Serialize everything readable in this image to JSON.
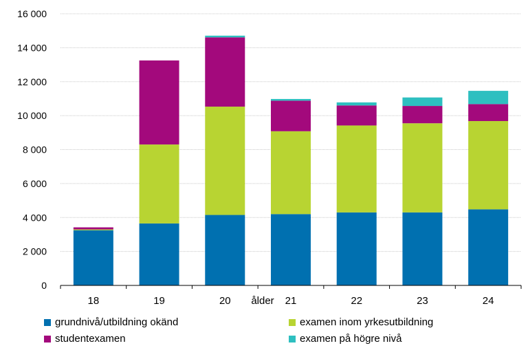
{
  "chart_data": {
    "type": "bar",
    "stacked": true,
    "title": "",
    "xlabel": "ålder",
    "ylabel": "",
    "ylim": [
      0,
      16000
    ],
    "yticks": [
      0,
      2000,
      4000,
      6000,
      8000,
      10000,
      12000,
      14000,
      16000
    ],
    "ytick_labels": [
      "0",
      "2 000",
      "4 000",
      "6 000",
      "8 000",
      "10 000",
      "12 000",
      "14 000",
      "16 000"
    ],
    "grid": true,
    "legend_position": "bottom",
    "categories": [
      "18",
      "19",
      "20",
      "21",
      "22",
      "23",
      "24"
    ],
    "series": [
      {
        "name": "grundnivå/utbildning okänd",
        "color": "#0070b0",
        "values": [
          3250,
          3650,
          4150,
          4200,
          4300,
          4300,
          4480
        ]
      },
      {
        "name": "examen inom yrkesutbildning",
        "color": "#b8d432",
        "values": [
          50,
          4650,
          6380,
          4880,
          5120,
          5250,
          5200
        ]
      },
      {
        "name": "studentexamen",
        "color": "#a3097c",
        "values": [
          120,
          4950,
          4080,
          1800,
          1180,
          1020,
          1000
        ]
      },
      {
        "name": "examen på högre nivå",
        "color": "#2ebfc0",
        "values": [
          0,
          0,
          100,
          100,
          180,
          500,
          780
        ]
      }
    ]
  }
}
